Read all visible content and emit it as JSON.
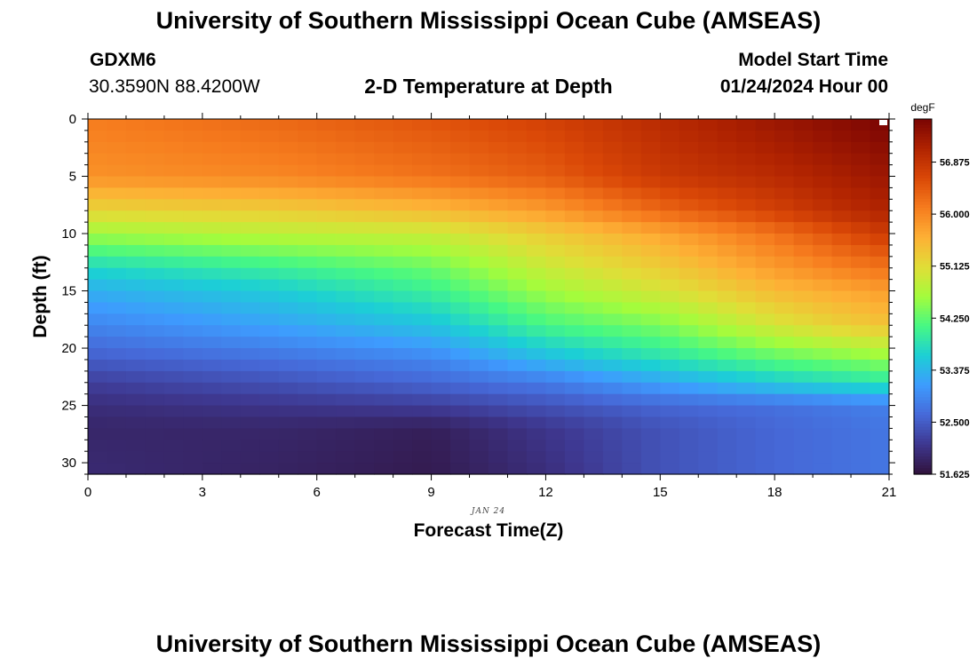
{
  "header": {
    "title": "University of Southern Mississippi Ocean Cube (AMSEAS)",
    "station_id": "GDXM6",
    "coordinates": "30.3590N  88.4200W",
    "plot_title": "2-D Temperature at Depth",
    "model_start_label": "Model Start Time",
    "model_start_value": "01/24/2024 Hour 00"
  },
  "footer": {
    "repeated_title": "University of Southern Mississippi Ocean Cube (AMSEAS)"
  },
  "chart_data": {
    "type": "heatmap",
    "title": "2-D Temperature at Depth",
    "xlabel": "Forecast Time(Z)",
    "ylabel": "Depth (ft)",
    "x_date_label": "JAN 24",
    "x_ticks": [
      0,
      3,
      6,
      9,
      12,
      15,
      18,
      21
    ],
    "y_ticks": [
      0,
      5,
      10,
      15,
      20,
      25,
      30
    ],
    "xlim": [
      0,
      21
    ],
    "ylim": [
      0,
      31
    ],
    "y_inverted": true,
    "grid": false,
    "colorbar": {
      "unit": "degF",
      "min": 51.625,
      "max": 57.6,
      "ticks": [
        "56.875",
        "56.000",
        "55.125",
        "54.250",
        "53.375",
        "52.500",
        "51.625"
      ],
      "colors": [
        "#30123b",
        "#3e378f",
        "#4669d8",
        "#3e9bfe",
        "#1ccfd5",
        "#46f884",
        "#a4fc3c",
        "#e1dd37",
        "#fdb035",
        "#f67c1e",
        "#da4807",
        "#b02301",
        "#7a0403"
      ]
    },
    "z_unit": "degF",
    "x": [
      0,
      0.5,
      1,
      1.5,
      2,
      2.5,
      3,
      3.5,
      4,
      4.5,
      5,
      5.5,
      6,
      6.5,
      7,
      7.5,
      8,
      8.5,
      9,
      9.5,
      10,
      10.5,
      11,
      11.5,
      12,
      12.5,
      13,
      13.5,
      14,
      14.5,
      15,
      15.5,
      16,
      16.5,
      17,
      17.5,
      18,
      18.5,
      19,
      19.5,
      20,
      20.5
    ],
    "depth_levels_ft": [
      0,
      1,
      2,
      3,
      4,
      5,
      6,
      7,
      8,
      9,
      10,
      11,
      12,
      13,
      14,
      15,
      16,
      17,
      18,
      19,
      20,
      21,
      22,
      23,
      24,
      25,
      26,
      27,
      28,
      29,
      30
    ],
    "profiles": [
      {
        "time": 0,
        "depth": [
          0,
          5,
          8,
          10,
          13,
          15,
          18,
          21,
          23,
          25,
          27,
          31
        ],
        "temp": [
          56.1,
          55.9,
          55.2,
          54.6,
          53.7,
          53.3,
          52.9,
          52.5,
          52.2,
          52.0,
          51.9,
          51.95
        ]
      },
      {
        "time": 5,
        "depth": [
          0,
          5,
          8,
          10,
          13,
          15,
          18,
          21,
          23,
          25,
          27,
          31
        ],
        "temp": [
          56.3,
          56.0,
          55.3,
          54.8,
          54.0,
          53.6,
          53.2,
          52.7,
          52.4,
          52.1,
          51.9,
          51.85
        ]
      },
      {
        "time": 9,
        "depth": [
          0,
          5,
          8,
          10,
          13,
          15,
          18,
          21,
          23,
          25,
          27,
          31
        ],
        "temp": [
          56.5,
          56.2,
          55.5,
          54.9,
          54.3,
          54.0,
          53.5,
          52.9,
          52.6,
          52.2,
          51.8,
          51.75
        ]
      },
      {
        "time": 12,
        "depth": [
          0,
          5,
          8,
          10,
          13,
          15,
          18,
          21,
          23,
          25,
          27,
          31
        ],
        "temp": [
          56.7,
          56.4,
          55.8,
          55.3,
          54.9,
          54.6,
          54.1,
          53.4,
          52.8,
          52.4,
          52.1,
          52.0
        ]
      },
      {
        "time": 15,
        "depth": [
          0,
          5,
          8,
          10,
          13,
          15,
          18,
          21,
          23,
          25,
          27,
          31
        ],
        "temp": [
          57.0,
          56.8,
          56.3,
          55.7,
          55.3,
          55.0,
          54.4,
          53.8,
          53.2,
          52.6,
          52.4,
          52.4
        ]
      },
      {
        "time": 18,
        "depth": [
          0,
          5,
          8,
          10,
          13,
          15,
          18,
          21,
          23,
          25,
          27,
          31
        ],
        "temp": [
          57.3,
          57.0,
          56.7,
          56.2,
          55.8,
          55.5,
          55.0,
          54.2,
          53.6,
          52.7,
          52.6,
          52.6
        ]
      },
      {
        "time": 20,
        "depth": [
          0,
          5,
          8,
          10,
          13,
          15,
          18,
          21,
          23,
          25,
          27,
          31
        ],
        "temp": [
          57.5,
          57.2,
          57.0,
          56.6,
          56.1,
          55.7,
          55.3,
          54.4,
          53.8,
          52.8,
          52.7,
          52.7
        ]
      },
      {
        "time": 21,
        "depth": [
          0,
          5,
          8,
          10,
          13,
          15,
          18,
          21,
          23,
          25,
          27,
          31
        ],
        "temp": [
          57.6,
          57.3,
          57.1,
          56.8,
          56.2,
          55.8,
          55.4,
          54.5,
          53.9,
          52.85,
          52.75,
          52.75
        ]
      }
    ]
  }
}
